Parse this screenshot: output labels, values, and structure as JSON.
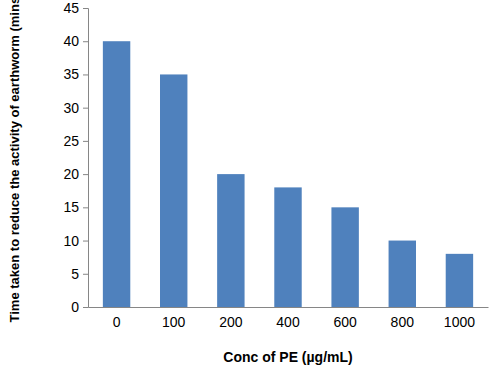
{
  "chart_data": {
    "type": "bar",
    "x_label": "Conc of PE (µg/mL)",
    "y_label": "Time taken to reduce the activity of earthworm (mins)",
    "categories": [
      "0",
      "100",
      "200",
      "400",
      "600",
      "800",
      "1000"
    ],
    "values": [
      40,
      35,
      20,
      18,
      15,
      10,
      8
    ],
    "color": "#4f81bd",
    "ylim": [
      0,
      45
    ],
    "yticks": [
      0,
      5,
      10,
      15,
      20,
      25,
      30,
      35,
      40,
      45
    ],
    "grid": false
  }
}
